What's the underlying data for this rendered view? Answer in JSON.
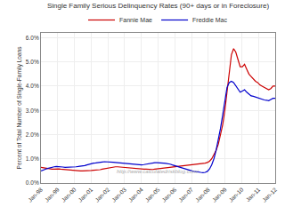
{
  "chart_data": {
    "type": "line",
    "title": "Single Family Serious Delinquency Rates (90+ days or in Foreclosure)",
    "y_label": "Percent of Total Number of Single-Family Loans",
    "annotations": [
      "http://www.calculatedriskblog.com/"
    ],
    "x": [
      0,
      0.1308,
      0.2617,
      0.3925,
      0.5234,
      0.6542,
      0.785,
      0.9159,
      1.0467,
      1.1776,
      1.3084,
      1.4393,
      1.5701,
      1.7009,
      1.8318,
      1.9626,
      2.0935,
      2.2243,
      2.3551,
      2.486,
      2.6168,
      2.7477,
      2.8785,
      3.0093,
      3.1402,
      3.271,
      3.4019,
      3.5327,
      3.6636,
      3.7944,
      3.9252,
      4.0561,
      4.1869,
      4.3178,
      4.4486,
      4.5794,
      4.7103,
      4.8411,
      4.972,
      5.1028,
      5.2336,
      5.3645,
      5.4953,
      5.6262,
      5.757,
      5.8879,
      6.0187,
      6.1495,
      6.2804,
      6.4112,
      6.5421,
      6.6729,
      6.8037,
      6.9346,
      7.0654,
      7.1963,
      7.3271,
      7.4579,
      7.5888,
      7.7196,
      7.8505,
      7.9813,
      8.1121,
      8.243,
      8.3738,
      8.5047,
      8.6355,
      8.7664,
      8.8972,
      9.028,
      9.1589,
      9.2897,
      9.4206,
      9.5514,
      9.6822,
      9.8131,
      9.9439,
      10.0748,
      10.2056,
      10.3364,
      10.4673,
      10.5981,
      10.729,
      10.8598,
      10.9907,
      11.1215,
      11.2523,
      11.3832,
      11.514,
      11.6449,
      11.7757,
      11.9065,
      12.0374,
      12.1682,
      12.2991,
      12.4299,
      12.5607,
      12.6916,
      12.8224,
      12.9533,
      13.0841,
      13.215,
      13.3458,
      13.4766,
      13.6075,
      13.7383,
      13.8692,
      14
    ],
    "series": [
      {
        "name": "Fannie Mae",
        "color": "#cc0000",
        "values": [
          0.0065,
          0.0063,
          0.0062,
          0.006,
          0.0058,
          0.0057,
          0.0057,
          0.0058,
          0.0058,
          0.0057,
          0.0056,
          0.0055,
          0.0054,
          0.0053,
          0.0052,
          0.0051,
          0.005,
          0.005,
          0.005,
          0.005,
          0.005,
          0.005,
          0.0051,
          0.0052,
          0.0053,
          0.0053,
          0.0054,
          0.0055,
          0.0057,
          0.0059,
          0.006,
          0.0062,
          0.0063,
          0.0065,
          0.0067,
          0.0067,
          0.0066,
          0.0065,
          0.0064,
          0.0063,
          0.0062,
          0.0061,
          0.006,
          0.0059,
          0.0058,
          0.0058,
          0.0057,
          0.0057,
          0.0057,
          0.0056,
          0.0056,
          0.0056,
          0.0057,
          0.0058,
          0.0059,
          0.006,
          0.0061,
          0.0063,
          0.0064,
          0.0065,
          0.0066,
          0.0067,
          0.0068,
          0.0069,
          0.007,
          0.0071,
          0.0072,
          0.0073,
          0.0074,
          0.0075,
          0.0076,
          0.0077,
          0.0078,
          0.0079,
          0.008,
          0.0082,
          0.0085,
          0.009,
          0.01,
          0.0115,
          0.0135,
          0.016,
          0.0195,
          0.024,
          0.03,
          0.038,
          0.046,
          0.053,
          0.0555,
          0.054,
          0.051,
          0.048,
          0.048,
          0.049,
          0.047,
          0.045,
          0.044,
          0.043,
          0.042,
          0.0415,
          0.0405,
          0.04,
          0.0395,
          0.039,
          0.0385,
          0.039,
          0.04,
          0.04
        ]
      },
      {
        "name": "Freddie Mac",
        "color": "#0000cc",
        "values": [
          0.005,
          0.0055,
          0.0057,
          0.006,
          0.0063,
          0.0065,
          0.0067,
          0.0068,
          0.0068,
          0.0067,
          0.0066,
          0.0065,
          0.0065,
          0.0065,
          0.0065,
          0.0066,
          0.0067,
          0.0068,
          0.0069,
          0.007,
          0.0072,
          0.0075,
          0.0078,
          0.008,
          0.0082,
          0.0083,
          0.0085,
          0.0086,
          0.0087,
          0.0088,
          0.0088,
          0.0088,
          0.0087,
          0.0086,
          0.0085,
          0.0084,
          0.0083,
          0.0082,
          0.0081,
          0.008,
          0.0079,
          0.0078,
          0.0077,
          0.0076,
          0.0075,
          0.0075,
          0.0075,
          0.0076,
          0.0078,
          0.008,
          0.0082,
          0.0083,
          0.0084,
          0.0084,
          0.0084,
          0.0083,
          0.0082,
          0.0081,
          0.008,
          0.0078,
          0.0075,
          0.0072,
          0.0069,
          0.0066,
          0.0063,
          0.006,
          0.0058,
          0.0055,
          0.0052,
          0.005,
          0.0048,
          0.0046,
          0.0045,
          0.0044,
          0.0043,
          0.0044,
          0.0048,
          0.0058,
          0.0075,
          0.01,
          0.0135,
          0.0178,
          0.0225,
          0.028,
          0.034,
          0.0395,
          0.0415,
          0.042,
          0.0415,
          0.04,
          0.0385,
          0.0375,
          0.038,
          0.0385,
          0.0375,
          0.0368,
          0.036,
          0.0358,
          0.0355,
          0.035,
          0.0348,
          0.0345,
          0.0343,
          0.0342,
          0.034,
          0.0345,
          0.035,
          0.035
        ]
      }
    ],
    "xlim": [
      0,
      14
    ],
    "xticks": [
      {
        "value": 0,
        "label": "Jan-98"
      },
      {
        "value": 1,
        "label": "Jan-99"
      },
      {
        "value": 2,
        "label": "Jan-00"
      },
      {
        "value": 3,
        "label": "Jan-01"
      },
      {
        "value": 4,
        "label": "Jan-02"
      },
      {
        "value": 5,
        "label": "Jan-03"
      },
      {
        "value": 6,
        "label": "Jan-04"
      },
      {
        "value": 7,
        "label": "Jan-05"
      },
      {
        "value": 8,
        "label": "Jan-06"
      },
      {
        "value": 9,
        "label": "Jan-07"
      },
      {
        "value": 10,
        "label": "Jan-08"
      },
      {
        "value": 11,
        "label": "Jan-09"
      },
      {
        "value": 12,
        "label": "Jan-10"
      },
      {
        "value": 13,
        "label": "Jan-11"
      },
      {
        "value": 14,
        "label": "Jan-12"
      }
    ],
    "ylim": [
      0.0,
      0.062
    ],
    "yticks": [
      {
        "value": 0.0,
        "label": "0.0%"
      },
      {
        "value": 0.01,
        "label": "1.0%"
      },
      {
        "value": 0.02,
        "label": "2.0%"
      },
      {
        "value": 0.03,
        "label": "3.0%"
      },
      {
        "value": 0.04,
        "label": "4.0%"
      },
      {
        "value": 0.05,
        "label": "5.0%"
      },
      {
        "value": 0.06,
        "label": "6.0%"
      }
    ],
    "grid": true,
    "legend": "top"
  }
}
